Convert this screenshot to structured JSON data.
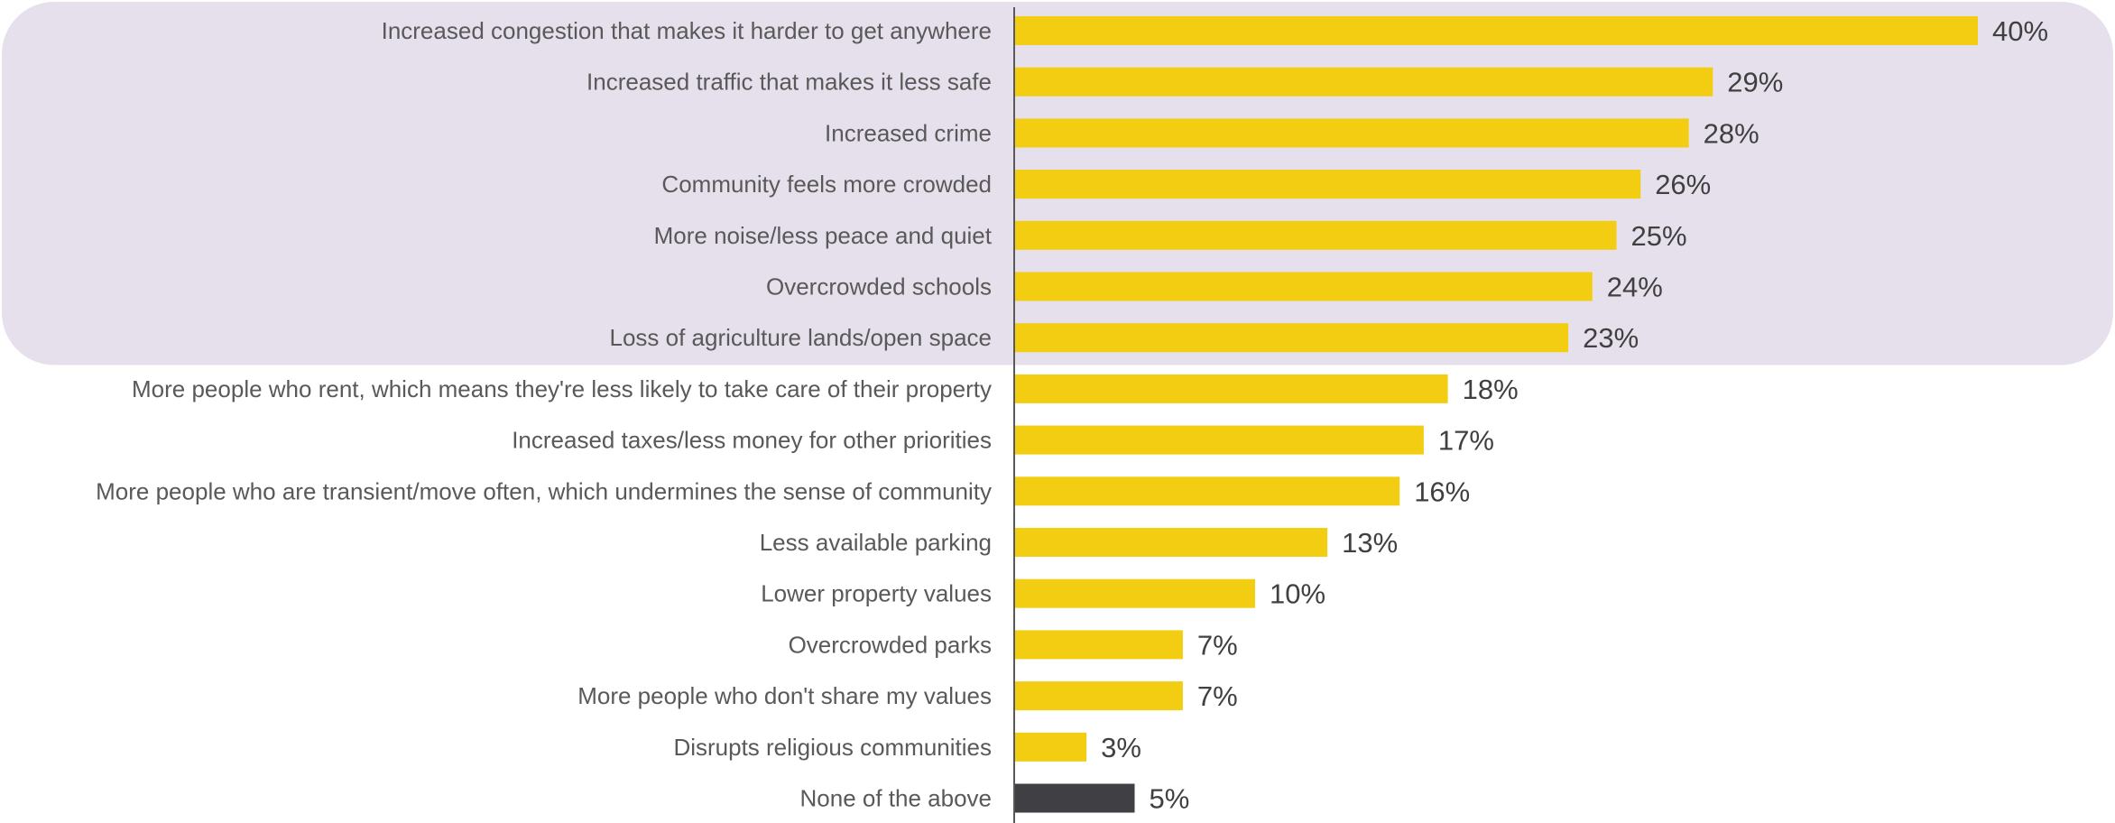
{
  "chart_data": {
    "type": "bar",
    "orientation": "horizontal",
    "categories": [
      "Increased congestion that makes it harder to get anywhere",
      "Increased traffic that makes it less safe",
      "Increased crime",
      "Community feels more crowded",
      "More noise/less peace and quiet",
      "Overcrowded schools",
      "Loss of agriculture lands/open space",
      "More people who rent, which means they're less likely to take care of their property",
      "Increased taxes/less money for other priorities",
      "More people who are transient/move often, which undermines the sense of community",
      "Less available parking",
      "Lower property values",
      "Overcrowded parks",
      "More people who don't share my values",
      "Disrupts religious communities",
      "None of the above"
    ],
    "values": [
      40,
      29,
      28,
      26,
      25,
      24,
      23,
      18,
      17,
      16,
      13,
      10,
      7,
      7,
      3,
      5
    ],
    "value_labels": [
      "40%",
      "29%",
      "28%",
      "26%",
      "25%",
      "24%",
      "23%",
      "18%",
      "17%",
      "16%",
      "13%",
      "10%",
      "7%",
      "7%",
      "3%",
      "5%"
    ],
    "unit": "%",
    "xlim": [
      0,
      40
    ],
    "grid": false,
    "highlighted_categories": 7,
    "colors": {
      "bar": "#f2cd12",
      "bar_none": "#404044",
      "highlight_band": "#e6e0ec",
      "axis": "#595959"
    }
  }
}
